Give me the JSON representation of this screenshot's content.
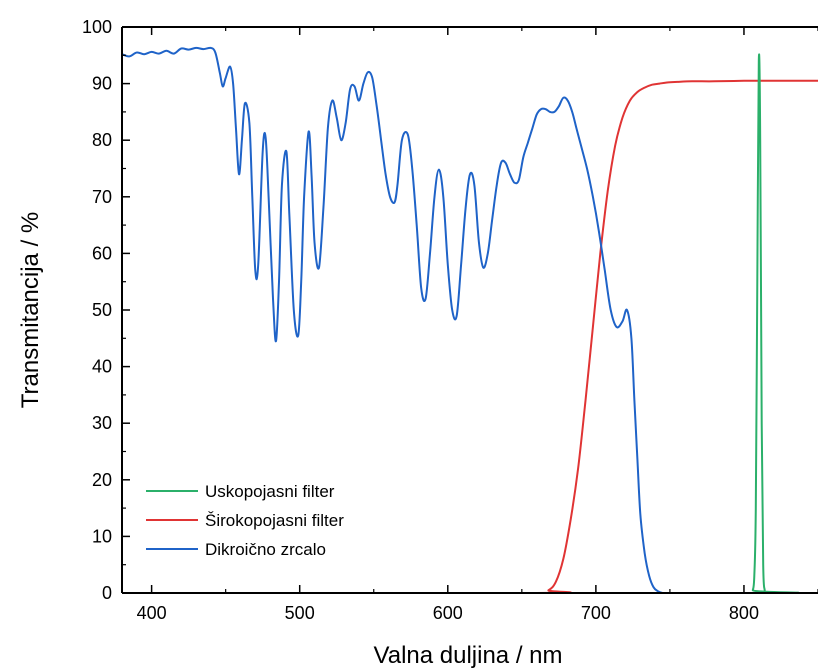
{
  "chart_data": {
    "type": "line",
    "xlabel": "Valna duljina / nm",
    "ylabel": "Transmitancija / %",
    "xlim": [
      380,
      850
    ],
    "ylim": [
      0,
      100
    ],
    "xticks": [
      400,
      500,
      600,
      700,
      800
    ],
    "yticks": [
      0,
      10,
      20,
      30,
      40,
      50,
      60,
      70,
      80,
      90,
      100
    ],
    "grid": false,
    "legend_position": "bottom-left",
    "series": [
      {
        "name": "Uskopojasni filter",
        "color": "#2bb06a",
        "x": [
          380,
          805,
          806,
          807,
          808,
          809,
          810,
          811,
          812,
          813,
          814,
          815,
          850
        ],
        "y": [
          0,
          0,
          0.5,
          3,
          15,
          55,
          94,
          80,
          30,
          5,
          0.5,
          0,
          0
        ]
      },
      {
        "name": "Širokopojasni filter",
        "color": "#e03434",
        "x": [
          380,
          660,
          668,
          673,
          678,
          683,
          688,
          693,
          698,
          703,
          708,
          713,
          718,
          723,
          728,
          733,
          738,
          743,
          748,
          755,
          765,
          780,
          800,
          820,
          850
        ],
        "y": [
          0,
          0,
          0.5,
          2,
          6,
          13,
          22,
          34,
          47,
          60,
          71,
          79,
          84,
          87,
          88.5,
          89.3,
          89.8,
          90.0,
          90.2,
          90.3,
          90.4,
          90.4,
          90.5,
          90.5,
          90.5
        ]
      },
      {
        "name": "Dikroično zrcalo",
        "color": "#1f63c8",
        "x": [
          380,
          385,
          390,
          395,
          400,
          405,
          410,
          415,
          420,
          425,
          430,
          435,
          440,
          443,
          446,
          448,
          450,
          453,
          455,
          457,
          459,
          461,
          463,
          466,
          468,
          470,
          472,
          475,
          477,
          479,
          482,
          484,
          486,
          488,
          491,
          493,
          496,
          499,
          501,
          503,
          506,
          508,
          510,
          513,
          516,
          519,
          522,
          525,
          528,
          531,
          534,
          537,
          540,
          543,
          546,
          549,
          552,
          555,
          558,
          561,
          564,
          566,
          569,
          573,
          576,
          579,
          582,
          585,
          588,
          591,
          594,
          597,
          600,
          603,
          606,
          609,
          612,
          615,
          618,
          621,
          624,
          627,
          630,
          633,
          636,
          639,
          642,
          645,
          648,
          651,
          654,
          657,
          660,
          663,
          666,
          669,
          672,
          675,
          678,
          681,
          684,
          687,
          690,
          694,
          698,
          702,
          706,
          710,
          714,
          718,
          721,
          724,
          726,
          728,
          730,
          733,
          736,
          739,
          742,
          745,
          748,
          752,
          760,
          780,
          800,
          850
        ],
        "y": [
          95.2,
          94.8,
          95.5,
          95.2,
          95.6,
          95.3,
          95.8,
          95.3,
          96.2,
          96.0,
          96.3,
          96.1,
          96.3,
          95.5,
          92,
          89.5,
          91,
          93,
          90,
          82,
          74,
          80,
          86.5,
          83,
          70,
          57,
          58,
          78,
          80.5,
          70,
          52,
          44.5,
          55,
          72,
          78,
          67,
          50,
          45.5,
          55,
          70,
          81.5,
          74,
          62,
          57.5,
          68,
          82,
          87,
          84,
          80,
          83,
          89,
          89.5,
          87,
          90,
          92,
          91,
          86,
          80,
          74,
          70,
          69,
          72,
          80,
          81,
          75,
          65,
          54,
          52,
          60,
          70,
          74.8,
          70,
          58,
          50,
          49,
          58,
          68,
          74,
          72,
          62,
          57.5,
          60,
          66,
          72,
          76,
          76,
          74,
          72.5,
          73,
          77,
          79.5,
          82,
          84.5,
          85.5,
          85.5,
          85,
          85,
          86,
          87.5,
          87,
          85,
          82,
          79,
          75,
          70,
          64,
          57,
          50,
          47,
          48,
          50,
          45,
          34,
          24,
          14,
          7,
          3,
          1,
          0.3,
          0,
          0,
          0,
          0,
          0,
          0,
          0
        ]
      }
    ]
  }
}
